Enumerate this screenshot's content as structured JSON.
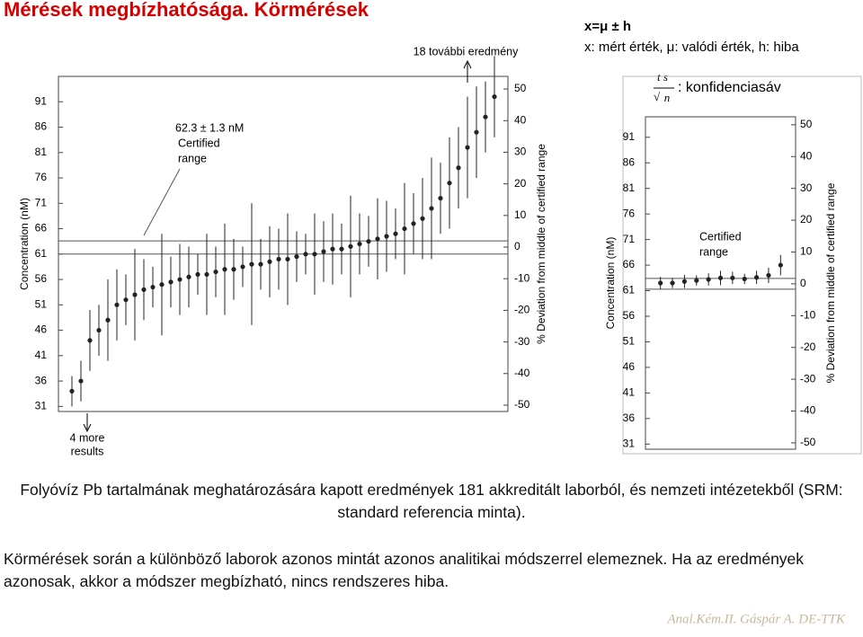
{
  "title": "Mérések megbízhatósága. Körmérések",
  "formula": "x=μ ± h",
  "formula_note": "x: mért érték, μ: valódi érték, h: hiba",
  "conf_numerator": "t s",
  "conf_denominator": "n",
  "conf_label": ": konfidenciasáv",
  "chart_data": [
    {
      "type": "errorbar",
      "y_label": "Concentration (nM)",
      "y2_label": "% Deviation from middle of certified range",
      "annotations": [
        "62.3 ± 1.3 nM",
        "Certified",
        "range",
        "18 további eredmény",
        "4 more",
        "results"
      ],
      "certified_range": [
        61.0,
        63.6
      ],
      "values": [
        34,
        36,
        44,
        46,
        48,
        51,
        52,
        53,
        54,
        54.5,
        55,
        55.5,
        56,
        56.5,
        57,
        57,
        57.5,
        58,
        58,
        58.5,
        59,
        59,
        59.5,
        60,
        60,
        60.5,
        61,
        61,
        61.5,
        62,
        62,
        62.5,
        63,
        63.5,
        64,
        64.5,
        65,
        66,
        67,
        68,
        70,
        72,
        75,
        78,
        82,
        85,
        88,
        92
      ],
      "errors": [
        3,
        4,
        6,
        5,
        8,
        7,
        5,
        9,
        6,
        4,
        10,
        5,
        7,
        6,
        4,
        8,
        5,
        9,
        6,
        4,
        12,
        5,
        7,
        6,
        9,
        5,
        4,
        8,
        6,
        7,
        5,
        10,
        6,
        5,
        8,
        7,
        5,
        9,
        6,
        8,
        10,
        7,
        9,
        8,
        10,
        9,
        7,
        8
      ],
      "color": "#222",
      "ylim": [
        30,
        96
      ],
      "yticks": [
        31,
        36,
        41,
        46,
        51,
        56,
        61,
        66,
        71,
        76,
        81,
        86,
        91
      ],
      "y2lim": [
        -52,
        54
      ],
      "y2ticks": [
        -50,
        -40,
        -30,
        -20,
        -10,
        0,
        10,
        20,
        30,
        40,
        50
      ]
    },
    {
      "type": "errorbar",
      "y_label": "Concentration (nM)",
      "y2_label": "% Deviation from middle of certified range",
      "annotations": [
        "Certified",
        "range"
      ],
      "certified_range": [
        61.3,
        63.4
      ],
      "values": [
        62.5,
        62.5,
        62.8,
        63,
        63.2,
        63.5,
        63.5,
        63.3,
        63.6,
        64,
        66
      ],
      "errors": [
        1.2,
        1,
        1.3,
        1,
        1.2,
        1.4,
        1.2,
        1,
        1.3,
        1.5,
        2
      ],
      "color": "#222",
      "ylim": [
        30,
        95
      ],
      "yticks": [
        31,
        36,
        41,
        46,
        51,
        56,
        61,
        66,
        71,
        76,
        81,
        86,
        91
      ],
      "y2lim": [
        -52,
        52.5
      ],
      "y2ticks": [
        -50,
        -40,
        -30,
        -20,
        -10,
        0,
        10,
        20,
        30,
        40,
        50
      ]
    }
  ],
  "paragraphs": [
    "Folyóvíz Pb tartalmának meghatározására kapott eredmények 181 akkreditált laborból, és nemzeti intézetekből (SRM: standard referencia minta).",
    "Körmérések során a különböző laborok azonos mintát azonos analitikai módszerrel elemeznek. Ha az eredmények azonosak, akkor a módszer megbízható, nincs rendszeres hiba."
  ],
  "footer": "Anal.Kém.II. Gáspár A. DE-TTK"
}
